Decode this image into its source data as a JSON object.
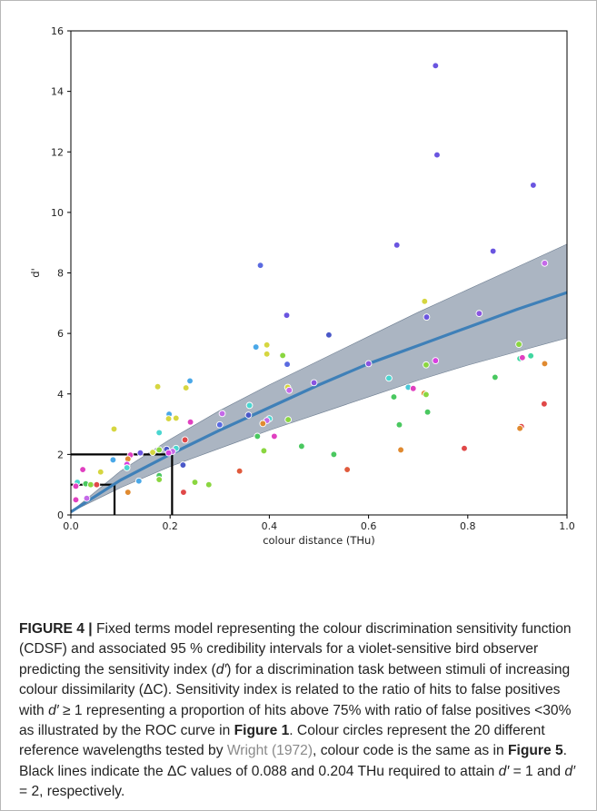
{
  "figure": {
    "label": "FIGURE 4 |",
    "caption": {
      "p1": " Fixed terms model representing the colour discrimination sensitivity function (CDSF) and associated 95 % credibility intervals for a violet-sensitive bird observer predicting the sensitivity index (",
      "dprime": "d′",
      "p2": ") for a discrimination task between stimuli of increasing colour dissimilarity (ΔC). Sensitivity index is related to the ratio of hits to false positives with ",
      "p3": " ≥ 1 representing a proportion of hits above 75% with ratio of false positives <30% as illustrated by the ROC curve in ",
      "fig1": "Figure 1",
      "p4": ". Colour circles represent the 20 different reference wavelengths tested by ",
      "ref": "Wright (1972)",
      "p5": ", colour code is the same as in ",
      "fig5": "Figure 5",
      "p6": ". Black lines indicate the ΔC values of 0.088 and 0.204 THu required to attain ",
      "p7": " = 1 and ",
      "p8": " = 2, respectively."
    }
  },
  "chart_data": {
    "type": "scatter",
    "xlabel": "colour distance (THu)",
    "ylabel": "d'",
    "xlim": [
      0.0,
      1.0
    ],
    "ylim": [
      0,
      16
    ],
    "xticks": [
      "0.0",
      "0.2",
      "0.4",
      "0.6",
      "0.8",
      "1.0"
    ],
    "yticks": [
      "0",
      "2",
      "4",
      "6",
      "8",
      "10",
      "12",
      "14",
      "16"
    ],
    "grid": false,
    "colors": {
      "fit_line": "#3f80b8",
      "ci_band": "#8796a8",
      "threshold_lines": "#000000"
    },
    "fit_line": {
      "x": [
        0.0,
        0.1,
        0.2,
        0.3,
        0.4,
        0.5,
        0.6,
        0.7,
        0.8,
        0.9,
        1.0
      ],
      "y": [
        0.1,
        1.15,
        2.0,
        2.8,
        3.55,
        4.3,
        5.0,
        5.6,
        6.2,
        6.8,
        7.35
      ]
    },
    "ci_upper": [
      0.1,
      1.45,
      2.5,
      3.45,
      4.3,
      5.1,
      5.9,
      6.7,
      7.45,
      8.2,
      8.95
    ],
    "ci_lower": [
      0.1,
      0.9,
      1.6,
      2.2,
      2.8,
      3.35,
      3.9,
      4.45,
      4.95,
      5.4,
      5.85
    ],
    "thresholds": [
      {
        "x": 0.088,
        "y": 1
      },
      {
        "x": 0.204,
        "y": 2
      }
    ],
    "points": [
      {
        "x": 0.735,
        "y": 14.85,
        "c": "#6a55e0"
      },
      {
        "x": 0.738,
        "y": 11.9,
        "c": "#6a55e0"
      },
      {
        "x": 0.932,
        "y": 10.9,
        "c": "#6a55e0"
      },
      {
        "x": 0.657,
        "y": 8.92,
        "c": "#6a55e0"
      },
      {
        "x": 0.851,
        "y": 8.72,
        "c": "#6a55e0"
      },
      {
        "x": 0.382,
        "y": 8.25,
        "c": "#5a6ae0"
      },
      {
        "x": 0.955,
        "y": 8.32,
        "c": "#c46ae8"
      },
      {
        "x": 0.435,
        "y": 6.6,
        "c": "#6a55e0"
      },
      {
        "x": 0.823,
        "y": 6.66,
        "c": "#8a55e0"
      },
      {
        "x": 0.717,
        "y": 6.54,
        "c": "#6a55e0"
      },
      {
        "x": 0.713,
        "y": 7.06,
        "c": "#d6d640"
      },
      {
        "x": 0.52,
        "y": 5.95,
        "c": "#4a58c8"
      },
      {
        "x": 0.373,
        "y": 5.55,
        "c": "#4aa8e8"
      },
      {
        "x": 0.395,
        "y": 5.62,
        "c": "#d6d640"
      },
      {
        "x": 0.395,
        "y": 5.32,
        "c": "#d6d640"
      },
      {
        "x": 0.427,
        "y": 5.27,
        "c": "#8ad640"
      },
      {
        "x": 0.903,
        "y": 5.64,
        "c": "#8ad640"
      },
      {
        "x": 0.927,
        "y": 5.26,
        "c": "#40d6a0"
      },
      {
        "x": 0.905,
        "y": 5.17,
        "c": "#40d6a0"
      },
      {
        "x": 0.91,
        "y": 5.2,
        "c": "#e040c0"
      },
      {
        "x": 0.735,
        "y": 5.1,
        "c": "#d840e0"
      },
      {
        "x": 0.955,
        "y": 5.0,
        "c": "#e08a30"
      },
      {
        "x": 0.6,
        "y": 5.0,
        "c": "#8a55e0"
      },
      {
        "x": 0.436,
        "y": 4.98,
        "c": "#5a6ae0"
      },
      {
        "x": 0.716,
        "y": 4.96,
        "c": "#8ad640"
      },
      {
        "x": 0.641,
        "y": 4.52,
        "c": "#4ad6d0"
      },
      {
        "x": 0.855,
        "y": 4.55,
        "c": "#4ac860"
      },
      {
        "x": 0.49,
        "y": 4.37,
        "c": "#8a55e0"
      },
      {
        "x": 0.24,
        "y": 4.43,
        "c": "#4aa8e8"
      },
      {
        "x": 0.437,
        "y": 4.22,
        "c": "#d6d640"
      },
      {
        "x": 0.44,
        "y": 4.12,
        "c": "#c46ae8"
      },
      {
        "x": 0.175,
        "y": 4.24,
        "c": "#d6d640"
      },
      {
        "x": 0.232,
        "y": 4.2,
        "c": "#d6d640"
      },
      {
        "x": 0.68,
        "y": 4.22,
        "c": "#4ac8d8"
      },
      {
        "x": 0.69,
        "y": 4.18,
        "c": "#e040c0"
      },
      {
        "x": 0.712,
        "y": 4.02,
        "c": "#e08a30"
      },
      {
        "x": 0.716,
        "y": 3.98,
        "c": "#8ad640"
      },
      {
        "x": 0.651,
        "y": 3.9,
        "c": "#4ac860"
      },
      {
        "x": 0.954,
        "y": 3.67,
        "c": "#e04848"
      },
      {
        "x": 0.36,
        "y": 3.62,
        "c": "#4ad6d0"
      },
      {
        "x": 0.358,
        "y": 3.3,
        "c": "#4a58c8"
      },
      {
        "x": 0.305,
        "y": 3.35,
        "c": "#c46ae8"
      },
      {
        "x": 0.198,
        "y": 3.33,
        "c": "#4aa8e8"
      },
      {
        "x": 0.212,
        "y": 3.2,
        "c": "#d6d640"
      },
      {
        "x": 0.197,
        "y": 3.18,
        "c": "#d6d640"
      },
      {
        "x": 0.4,
        "y": 3.18,
        "c": "#4ad6d0"
      },
      {
        "x": 0.438,
        "y": 3.15,
        "c": "#8ad640"
      },
      {
        "x": 0.241,
        "y": 3.07,
        "c": "#e040c0"
      },
      {
        "x": 0.395,
        "y": 3.12,
        "c": "#c46ae8"
      },
      {
        "x": 0.387,
        "y": 3.02,
        "c": "#e08a30"
      },
      {
        "x": 0.719,
        "y": 3.4,
        "c": "#4ac860"
      },
      {
        "x": 0.662,
        "y": 2.98,
        "c": "#4ac860"
      },
      {
        "x": 0.3,
        "y": 2.98,
        "c": "#5a6ae0"
      },
      {
        "x": 0.908,
        "y": 2.92,
        "c": "#e04848"
      },
      {
        "x": 0.905,
        "y": 2.86,
        "c": "#e08a30"
      },
      {
        "x": 0.087,
        "y": 2.84,
        "c": "#d6d640"
      },
      {
        "x": 0.178,
        "y": 2.72,
        "c": "#4ad6d0"
      },
      {
        "x": 0.376,
        "y": 2.6,
        "c": "#4ac860"
      },
      {
        "x": 0.41,
        "y": 2.6,
        "c": "#e040c0"
      },
      {
        "x": 0.23,
        "y": 2.48,
        "c": "#e04848"
      },
      {
        "x": 0.389,
        "y": 2.12,
        "c": "#8ad640"
      },
      {
        "x": 0.465,
        "y": 2.27,
        "c": "#4ac860"
      },
      {
        "x": 0.665,
        "y": 2.15,
        "c": "#e08a30"
      },
      {
        "x": 0.793,
        "y": 2.2,
        "c": "#e04848"
      },
      {
        "x": 0.193,
        "y": 2.17,
        "c": "#4a58c8"
      },
      {
        "x": 0.212,
        "y": 2.2,
        "c": "#4ad6d0"
      },
      {
        "x": 0.205,
        "y": 2.1,
        "c": "#c46ae8"
      },
      {
        "x": 0.197,
        "y": 2.05,
        "c": "#d840e0"
      },
      {
        "x": 0.178,
        "y": 2.15,
        "c": "#8ad640"
      },
      {
        "x": 0.165,
        "y": 2.07,
        "c": "#d6d640"
      },
      {
        "x": 0.14,
        "y": 2.05,
        "c": "#6a55e0"
      },
      {
        "x": 0.12,
        "y": 1.98,
        "c": "#e040c0"
      },
      {
        "x": 0.115,
        "y": 1.85,
        "c": "#e08a30"
      },
      {
        "x": 0.085,
        "y": 1.82,
        "c": "#4aa8e8"
      },
      {
        "x": 0.113,
        "y": 1.67,
        "c": "#d840e0"
      },
      {
        "x": 0.226,
        "y": 1.65,
        "c": "#4a58c8"
      },
      {
        "x": 0.53,
        "y": 2.0,
        "c": "#4ac860"
      },
      {
        "x": 0.557,
        "y": 1.5,
        "c": "#e05a3c"
      },
      {
        "x": 0.113,
        "y": 1.56,
        "c": "#4ad6d0"
      },
      {
        "x": 0.024,
        "y": 1.5,
        "c": "#e040c0"
      },
      {
        "x": 0.06,
        "y": 1.42,
        "c": "#d6d640"
      },
      {
        "x": 0.34,
        "y": 1.45,
        "c": "#e05a3c"
      },
      {
        "x": 0.178,
        "y": 1.3,
        "c": "#4ac860"
      },
      {
        "x": 0.178,
        "y": 1.17,
        "c": "#8ad640"
      },
      {
        "x": 0.137,
        "y": 1.12,
        "c": "#4aa8e8"
      },
      {
        "x": 0.25,
        "y": 1.08,
        "c": "#8ad640"
      },
      {
        "x": 0.278,
        "y": 1.0,
        "c": "#8ad640"
      },
      {
        "x": 0.013,
        "y": 1.08,
        "c": "#4ad6d0"
      },
      {
        "x": 0.03,
        "y": 1.03,
        "c": "#4ac860"
      },
      {
        "x": 0.04,
        "y": 1.0,
        "c": "#8ad640"
      },
      {
        "x": 0.052,
        "y": 1.0,
        "c": "#e04848"
      },
      {
        "x": 0.01,
        "y": 0.95,
        "c": "#e040c0"
      },
      {
        "x": 0.115,
        "y": 0.75,
        "c": "#e08a30"
      },
      {
        "x": 0.227,
        "y": 0.75,
        "c": "#e04848"
      },
      {
        "x": 0.01,
        "y": 0.5,
        "c": "#e040c0"
      },
      {
        "x": 0.032,
        "y": 0.55,
        "c": "#c46ae8"
      }
    ]
  }
}
